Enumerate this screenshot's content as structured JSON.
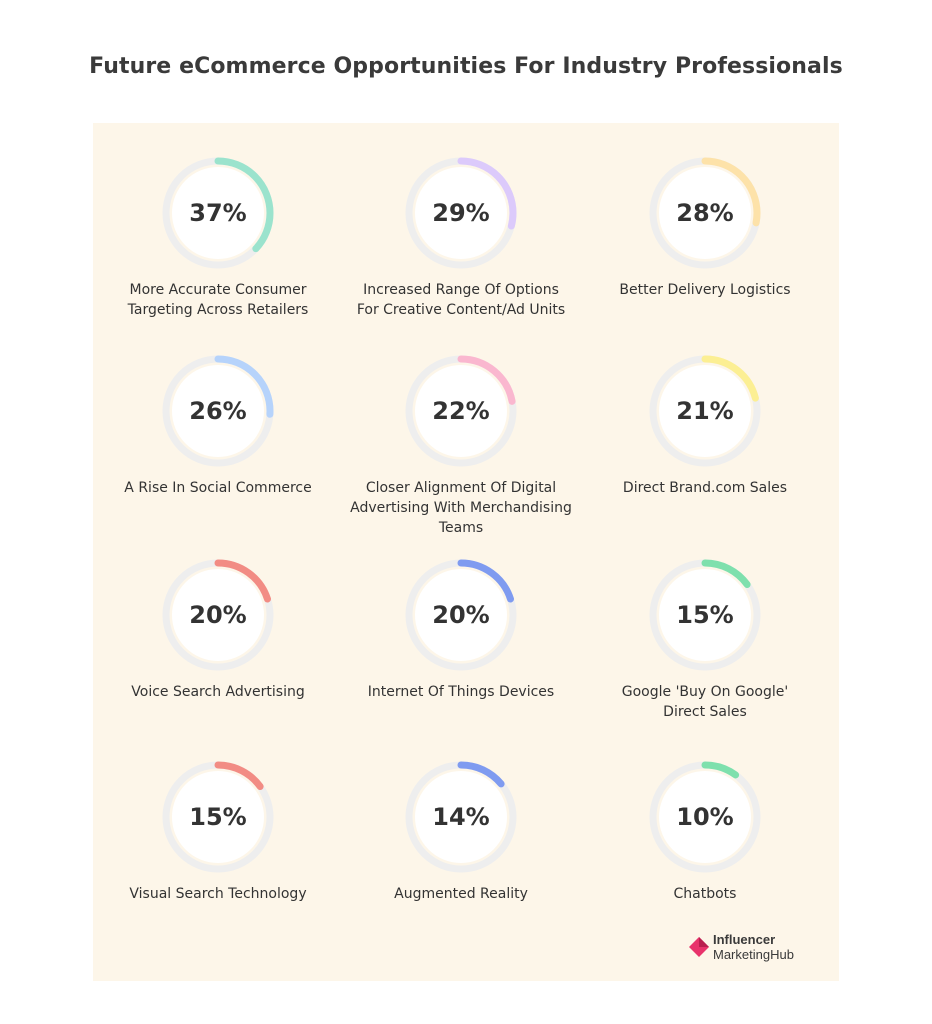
{
  "title": "Future eCommerce Opportunities For Industry Professionals",
  "chart_data": {
    "type": "donut-grid",
    "unit": "%",
    "categories": [
      "More Accurate Consumer\nTargeting Across Retailers",
      "Increased Range Of Options\nFor Creative Content/Ad Units",
      "Better Delivery Logistics",
      "A Rise In Social Commerce",
      "Closer Alignment Of Digital\nAdvertising With Merchandising\nTeams",
      "Direct Brand.com Sales",
      "Voice Search Advertising",
      "Internet Of Things Devices",
      "Google 'Buy On Google'\nDirect Sales",
      "Visual Search Technology",
      "Augmented Reality",
      "Chatbots"
    ],
    "values": [
      37,
      29,
      28,
      26,
      22,
      21,
      20,
      20,
      15,
      15,
      14,
      10
    ],
    "labels": [
      "37%",
      "29%",
      "28%",
      "26%",
      "22%",
      "21%",
      "20%",
      "20%",
      "15%",
      "15%",
      "14%",
      "10%"
    ],
    "colors": [
      "#9be3cd",
      "#dccafb",
      "#fde2a9",
      "#b6d3fb",
      "#fab7cf",
      "#fcef93",
      "#f28c84",
      "#7f9bf0",
      "#7ee0ad",
      "#f28c84",
      "#7f9bf0",
      "#7ee0ad"
    ],
    "track_color": "#eeeeee"
  },
  "logo": {
    "line1": "Influencer",
    "line2": "MarketingHub",
    "color": "#e8336b"
  }
}
